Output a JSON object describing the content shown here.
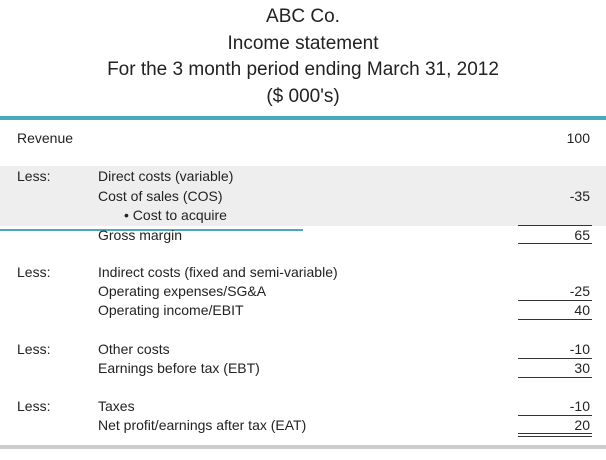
{
  "colors": {
    "accent": "#4aa8bd",
    "shade": "#eeeeee",
    "text": "#222222",
    "bottom_rule": "#cccccc"
  },
  "header": {
    "company": "ABC Co.",
    "statement": "Income statement",
    "period": "For the 3 month period ending March 31, 2012",
    "units": "($ 000's)"
  },
  "rows": {
    "revenue": {
      "label": "Revenue",
      "value": "100"
    },
    "less1": {
      "prefix": "Less:",
      "label": "Direct costs (variable)"
    },
    "cos": {
      "label": "Cost of sales (COS)",
      "value": "-35"
    },
    "cost_to_acquire": {
      "label": "• Cost to acquire"
    },
    "gross_margin": {
      "label": "Gross margin",
      "value": "65"
    },
    "less2": {
      "prefix": "Less:",
      "label": "Indirect costs (fixed and semi-variable)"
    },
    "opex": {
      "label": "Operating expenses/SG&A",
      "value": "-25"
    },
    "ebit": {
      "label": "Operating income/EBIT",
      "value": "40"
    },
    "less3": {
      "prefix": "Less:",
      "label": "Other costs",
      "value": "-10"
    },
    "ebt": {
      "label": "Earnings before tax (EBT)",
      "value": "30"
    },
    "less4": {
      "prefix": "Less:",
      "label": "Taxes",
      "value": "-10"
    },
    "eat": {
      "label": "Net profit/earnings after tax (EAT)",
      "value": "20"
    }
  }
}
